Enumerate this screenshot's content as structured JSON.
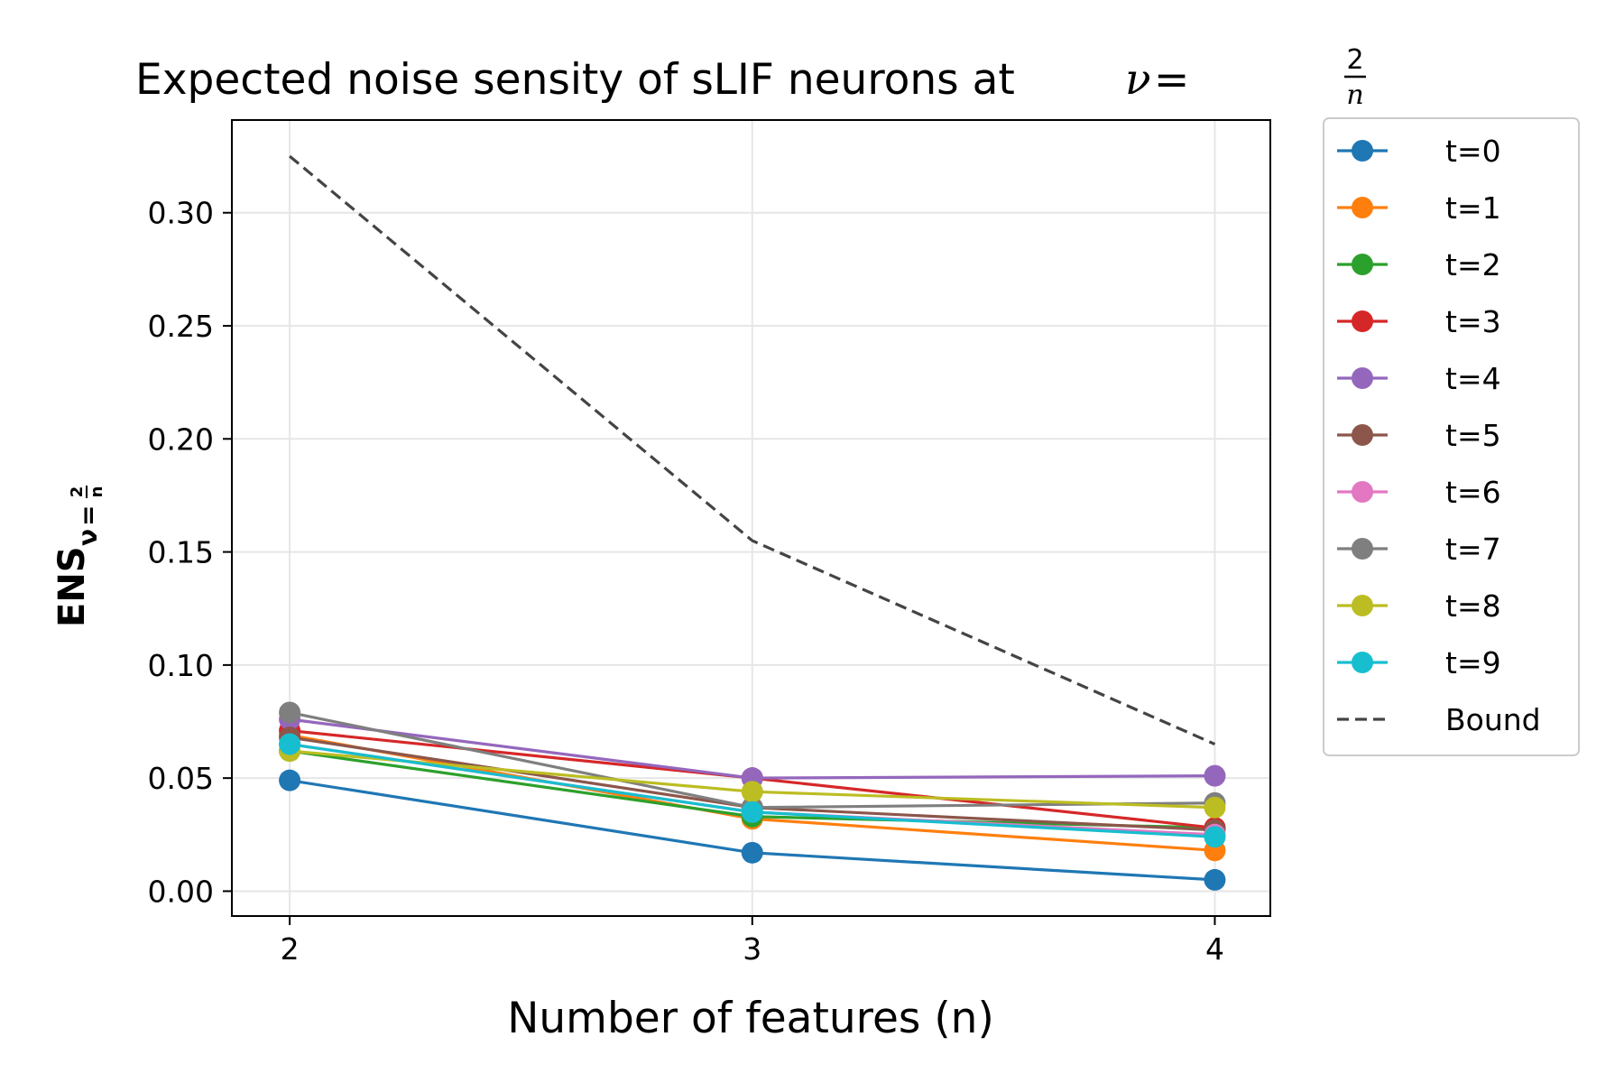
{
  "chart_data": {
    "type": "line",
    "title": {
      "prefix": "Expected noise sensity of sLIF neurons at ",
      "nu": "ν",
      "eq": "=",
      "frac_num": "2",
      "frac_den": "n"
    },
    "xlabel": "Number of features (n)",
    "ylabel": {
      "main": "ENS",
      "sub_nu": "ν",
      "sub_eq": "=",
      "sub_num": "2",
      "sub_den": "n"
    },
    "x": [
      2,
      3,
      4
    ],
    "x_ticks": [
      "2",
      "3",
      "4"
    ],
    "y_ticks": [
      "0.00",
      "0.05",
      "0.10",
      "0.15",
      "0.20",
      "0.25",
      "0.30"
    ],
    "y_tick_values": [
      0.0,
      0.05,
      0.1,
      0.15,
      0.2,
      0.25,
      0.3
    ],
    "xlim": [
      1.875,
      4.12
    ],
    "ylim": [
      -0.011,
      0.341
    ],
    "grid": true,
    "legend_position": "outside-right",
    "series": [
      {
        "name": "t=0",
        "color": "#1f77b4",
        "values": [
          0.049,
          0.017,
          0.005
        ],
        "style": "solid-marker"
      },
      {
        "name": "t=1",
        "color": "#ff7f0e",
        "values": [
          0.069,
          0.032,
          0.018
        ],
        "style": "solid-marker"
      },
      {
        "name": "t=2",
        "color": "#2ca02c",
        "values": [
          0.062,
          0.033,
          0.028
        ],
        "style": "solid-marker"
      },
      {
        "name": "t=3",
        "color": "#d62728",
        "values": [
          0.071,
          0.05,
          0.028
        ],
        "style": "solid-marker"
      },
      {
        "name": "t=4",
        "color": "#9467bd",
        "values": [
          0.076,
          0.05,
          0.051
        ],
        "style": "solid-marker"
      },
      {
        "name": "t=5",
        "color": "#8c564b",
        "values": [
          0.068,
          0.037,
          0.027
        ],
        "style": "solid-marker"
      },
      {
        "name": "t=6",
        "color": "#e377c2",
        "values": [
          0.065,
          0.035,
          0.025
        ],
        "style": "solid-marker"
      },
      {
        "name": "t=7",
        "color": "#7f7f7f",
        "values": [
          0.079,
          0.037,
          0.039
        ],
        "style": "solid-marker"
      },
      {
        "name": "t=8",
        "color": "#bcbd22",
        "values": [
          0.062,
          0.044,
          0.037
        ],
        "style": "solid-marker"
      },
      {
        "name": "t=9",
        "color": "#17becf",
        "values": [
          0.065,
          0.035,
          0.024
        ],
        "style": "solid-marker"
      },
      {
        "name": "Bound",
        "color": "#444444",
        "values": [
          0.325,
          0.155,
          0.065
        ],
        "style": "dashed"
      }
    ]
  }
}
